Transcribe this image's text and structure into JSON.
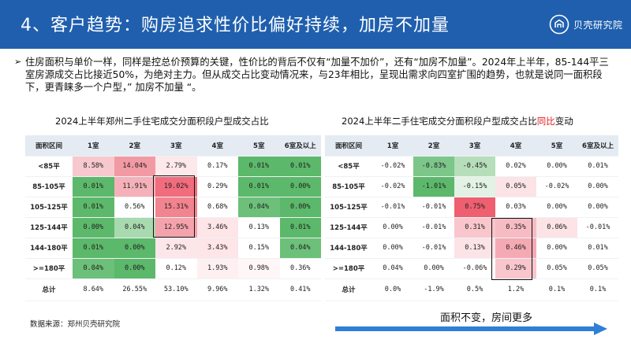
{
  "header": {
    "title": "4、客户趋势：购房追求性价比偏好持续，加房不加量",
    "logo_text": "贝壳研究院",
    "bg_color": "#1f5fae"
  },
  "bullet": {
    "text": "住房面积与单价一样，同样是控总价预算的关键，性价比的背后不仅有“加量不加价”，还有“加房不加量”。2024年上半年，85-144平三室房源成交占比接近50%，为绝对主力。但从成交占比变动情况来，与23年相比，呈现出需求向四室扩围的趋势，也就是说同一面积段下，更青睐多一个户型，” 加房不加量 “。"
  },
  "left_table": {
    "title": "2024上半年郑州二手住宅成交分面积段户型成交占比",
    "headers": [
      "面积区间",
      "1室",
      "2室",
      "3室",
      "4室",
      "5室",
      "6室及以上"
    ],
    "rows": [
      {
        "label": "<85平",
        "cells": [
          {
            "v": "8.58%",
            "bg": "#f7c8cd"
          },
          {
            "v": "14.04%",
            "bg": "#f29aa4"
          },
          {
            "v": "2.79%",
            "bg": "#fde8ea"
          },
          {
            "v": "0.17%",
            "bg": "#ffffff"
          },
          {
            "v": "0.01%",
            "bg": "#5cb86a"
          },
          {
            "v": "0.01%",
            "bg": "#5cb86a"
          }
        ]
      },
      {
        "label": "85-105平",
        "cells": [
          {
            "v": "0.01%",
            "bg": "#5cb86a"
          },
          {
            "v": "11.91%",
            "bg": "#f5b1b9"
          },
          {
            "v": "19.02%",
            "bg": "#f16c7c"
          },
          {
            "v": "0.29%",
            "bg": "#ffffff"
          },
          {
            "v": "0.01%",
            "bg": "#5cb86a"
          },
          {
            "v": "0.00%",
            "bg": "#5cb86a"
          }
        ]
      },
      {
        "label": "105-125平",
        "cells": [
          {
            "v": "0.01%",
            "bg": "#5cb86a"
          },
          {
            "v": "0.56%",
            "bg": "#ffffff"
          },
          {
            "v": "15.31%",
            "bg": "#f2848f"
          },
          {
            "v": "0.68%",
            "bg": "#ffffff"
          },
          {
            "v": "0.04%",
            "bg": "#6cc079"
          },
          {
            "v": "0.00%",
            "bg": "#5cb86a"
          }
        ]
      },
      {
        "label": "125-144平",
        "cells": [
          {
            "v": "0.00%",
            "bg": "#5cb86a"
          },
          {
            "v": "0.04%",
            "bg": "#a9d9ae"
          },
          {
            "v": "12.95%",
            "bg": "#f4a3ac"
          },
          {
            "v": "3.46%",
            "bg": "#fde5e8"
          },
          {
            "v": "0.13%",
            "bg": "#ffffff"
          },
          {
            "v": "0.01%",
            "bg": "#5cb86a"
          }
        ]
      },
      {
        "label": "144-180平",
        "cells": [
          {
            "v": "0.01%",
            "bg": "#5cb86a"
          },
          {
            "v": "0.00%",
            "bg": "#5cb86a"
          },
          {
            "v": "2.92%",
            "bg": "#fde6e9"
          },
          {
            "v": "3.43%",
            "bg": "#fde5e8"
          },
          {
            "v": "0.15%",
            "bg": "#ffffff"
          },
          {
            "v": "0.04%",
            "bg": "#6cc079"
          }
        ]
      },
      {
        "label": ">=180平",
        "cells": [
          {
            "v": "0.04%",
            "bg": "#6cc079"
          },
          {
            "v": "0.00%",
            "bg": "#5cb86a"
          },
          {
            "v": "0.12%",
            "bg": "#ffffff"
          },
          {
            "v": "1.93%",
            "bg": "#fef0f1"
          },
          {
            "v": "0.98%",
            "bg": "#fff6f7"
          },
          {
            "v": "0.36%",
            "bg": "#ffffff"
          }
        ]
      }
    ],
    "total": {
      "label": "总计",
      "cells": [
        "8.64%",
        "26.55%",
        "53.10%",
        "9.96%",
        "1.32%",
        "0.41%"
      ]
    }
  },
  "right_table": {
    "title_pre": "2024上半年二手住宅成交分面积段户型成交占比",
    "title_red": "同比",
    "title_post": "变动",
    "headers": [
      "面积区间",
      "1室",
      "2室",
      "3室",
      "4室",
      "5室",
      "6室及以上"
    ],
    "rows": [
      {
        "label": "<85平",
        "cells": [
          {
            "v": "-0.02%",
            "bg": "#ffffff"
          },
          {
            "v": "-0.83%",
            "bg": "#7cc689"
          },
          {
            "v": "-0.45%",
            "bg": "#b6deba"
          },
          {
            "v": "0.02%",
            "bg": "#ffffff"
          },
          {
            "v": "0.00%",
            "bg": "#ffffff"
          },
          {
            "v": "0.01%",
            "bg": "#ffffff"
          }
        ]
      },
      {
        "label": "85-105平",
        "cells": [
          {
            "v": "-0.02%",
            "bg": "#ffffff"
          },
          {
            "v": "-1.01%",
            "bg": "#5cb86a"
          },
          {
            "v": "-0.15%",
            "bg": "#e2f2e4"
          },
          {
            "v": "0.05%",
            "bg": "#fbe3e6"
          },
          {
            "v": "-0.02%",
            "bg": "#ffffff"
          },
          {
            "v": "0.00%",
            "bg": "#ffffff"
          }
        ]
      },
      {
        "label": "105-125平",
        "cells": [
          {
            "v": "-0.01%",
            "bg": "#ffffff"
          },
          {
            "v": "-0.01%",
            "bg": "#ffffff"
          },
          {
            "v": "0.75%",
            "bg": "#ee5f6f"
          },
          {
            "v": "0.03%",
            "bg": "#ffffff"
          },
          {
            "v": "0.00%",
            "bg": "#ffffff"
          },
          {
            "v": "0.00%",
            "bg": "#ffffff"
          }
        ]
      },
      {
        "label": "125-144平",
        "cells": [
          {
            "v": "0.00%",
            "bg": "#ffffff"
          },
          {
            "v": "-0.01%",
            "bg": "#ffffff"
          },
          {
            "v": "0.31%",
            "bg": "#f8c6cc"
          },
          {
            "v": "0.35%",
            "bg": "#f7bcc3"
          },
          {
            "v": "0.06%",
            "bg": "#fbe3e6"
          },
          {
            "v": "-0.01%",
            "bg": "#ffffff"
          }
        ]
      },
      {
        "label": "144-180平",
        "cells": [
          {
            "v": "0.00%",
            "bg": "#ffffff"
          },
          {
            "v": "-0.01%",
            "bg": "#ffffff"
          },
          {
            "v": "0.13%",
            "bg": "#fbe3e6"
          },
          {
            "v": "0.46%",
            "bg": "#f5aab3"
          },
          {
            "v": "0.00%",
            "bg": "#ffffff"
          },
          {
            "v": "0.01%",
            "bg": "#ffffff"
          }
        ]
      },
      {
        "label": ">=180平",
        "cells": [
          {
            "v": "0.04%",
            "bg": "#ffffff"
          },
          {
            "v": "0.00%",
            "bg": "#ffffff"
          },
          {
            "v": "-0.06%",
            "bg": "#ffffff"
          },
          {
            "v": "0.29%",
            "bg": "#f8c6cc"
          },
          {
            "v": "0.05%",
            "bg": "#ffffff"
          },
          {
            "v": "0.05%",
            "bg": "#ffffff"
          }
        ]
      }
    ],
    "total": {
      "label": "总计",
      "cells": [
        "0.0%",
        "-1.9%",
        "0.5%",
        "1.2%",
        "0.1%",
        "0.1%"
      ]
    }
  },
  "source": "数据来源：郑州贝壳研究院",
  "conclusion": "面积不变，房间更多",
  "arrow_color": "#2f7fd6"
}
